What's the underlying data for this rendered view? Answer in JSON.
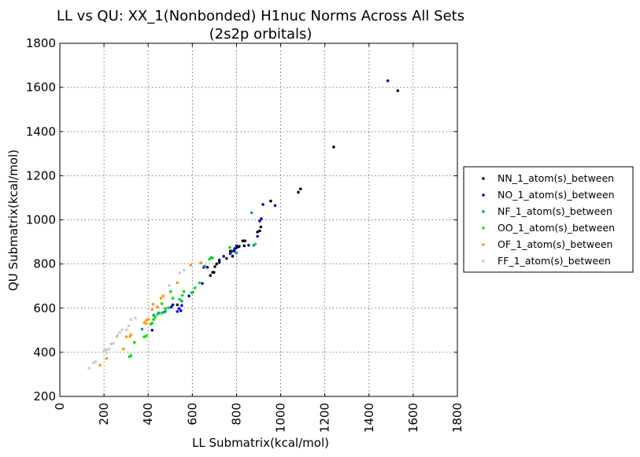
{
  "chart_data": {
    "type": "scatter",
    "title": "LL vs QU: XX_1(Nonbonded) H1nuc Norms Across All Sets",
    "subtitle": "(2s2p orbitals)",
    "xlabel": "LL Submatrix(kcal/mol)",
    "ylabel": "QU Submatrix(kcal/mol)",
    "xlim": [
      0,
      1800
    ],
    "ylim": [
      200,
      1800
    ],
    "xticks": [
      0,
      200,
      400,
      600,
      800,
      1000,
      1200,
      1400,
      1600,
      1800
    ],
    "yticks": [
      200,
      400,
      600,
      800,
      1000,
      1200,
      1400,
      1600,
      1800
    ],
    "xtick_labels": [
      "0",
      "200",
      "400",
      "600",
      "800",
      "1000",
      "1200",
      "1400",
      "1600",
      "1800"
    ],
    "ytick_labels": [
      "200",
      "400",
      "600",
      "800",
      "1000",
      "1200",
      "1400",
      "1600",
      "1800"
    ],
    "grid": true,
    "legend_position": "outside-right",
    "series": [
      {
        "name": "NN_1_atom(s)_between",
        "color": "#000000",
        "points": [
          [
            1530,
            1585
          ],
          [
            1240,
            1330
          ],
          [
            1090,
            1140
          ],
          [
            1080,
            1125
          ],
          [
            955,
            1085
          ],
          [
            910,
            968
          ],
          [
            905,
            950
          ],
          [
            895,
            945
          ],
          [
            838,
            905
          ],
          [
            828,
            905
          ],
          [
            835,
            882
          ],
          [
            812,
            880
          ],
          [
            802,
            875
          ],
          [
            790,
            860
          ],
          [
            772,
            858
          ],
          [
            782,
            835
          ],
          [
            755,
            825
          ],
          [
            722,
            808
          ],
          [
            710,
            800
          ],
          [
            702,
            788
          ],
          [
            692,
            762
          ],
          [
            682,
            748
          ],
          [
            698,
            762
          ],
          [
            668,
            785
          ],
          [
            532,
            615
          ]
        ]
      },
      {
        "name": "NO_1_atom(s)_between",
        "color": "#0000cc",
        "points": [
          [
            1485,
            1630
          ],
          [
            975,
            1065
          ],
          [
            920,
            1070
          ],
          [
            905,
            995
          ],
          [
            912,
            1005
          ],
          [
            895,
            925
          ],
          [
            855,
            885
          ],
          [
            800,
            882
          ],
          [
            792,
            870
          ],
          [
            778,
            858
          ],
          [
            772,
            848
          ],
          [
            742,
            835
          ],
          [
            722,
            818
          ],
          [
            652,
            785
          ],
          [
            645,
            712
          ],
          [
            585,
            655
          ],
          [
            552,
            612
          ],
          [
            540,
            598
          ],
          [
            548,
            588
          ],
          [
            532,
            585
          ],
          [
            512,
            615
          ],
          [
            505,
            605
          ],
          [
            418,
            500
          ]
        ]
      },
      {
        "name": "NF_1_atom(s)_between",
        "color": "#009999",
        "points": [
          [
            868,
            1032
          ],
          [
            878,
            885
          ],
          [
            800,
            850
          ],
          [
            685,
            828
          ],
          [
            655,
            790
          ],
          [
            602,
            672
          ],
          [
            552,
            632
          ],
          [
            478,
            585
          ],
          [
            472,
            582
          ],
          [
            448,
            578
          ],
          [
            425,
            568
          ],
          [
            372,
            505
          ]
        ]
      },
      {
        "name": "OO_1_atom(s)_between",
        "color": "#00e000",
        "points": [
          [
            885,
            890
          ],
          [
            770,
            875
          ],
          [
            692,
            828
          ],
          [
            678,
            822
          ],
          [
            632,
            715
          ],
          [
            612,
            692
          ],
          [
            597,
            670
          ],
          [
            562,
            675
          ],
          [
            555,
            658
          ],
          [
            542,
            640
          ],
          [
            502,
            675
          ],
          [
            512,
            645
          ],
          [
            462,
            620
          ],
          [
            492,
            602
          ],
          [
            478,
            598
          ],
          [
            462,
            578
          ],
          [
            442,
            572
          ],
          [
            432,
            560
          ],
          [
            424,
            548
          ],
          [
            418,
            532
          ],
          [
            412,
            528
          ],
          [
            392,
            475
          ],
          [
            382,
            470
          ],
          [
            338,
            445
          ],
          [
            322,
            385
          ],
          [
            315,
            380
          ]
        ]
      },
      {
        "name": "OF_1_atom(s)_between",
        "color": "#ff9900",
        "points": [
          [
            638,
            805
          ],
          [
            592,
            795
          ],
          [
            532,
            715
          ],
          [
            468,
            655
          ],
          [
            458,
            645
          ],
          [
            442,
            605
          ],
          [
            422,
            618
          ],
          [
            418,
            595
          ],
          [
            402,
            550
          ],
          [
            392,
            545
          ],
          [
            382,
            535
          ],
          [
            390,
            530
          ],
          [
            322,
            480
          ],
          [
            318,
            472
          ],
          [
            302,
            470
          ],
          [
            288,
            415
          ],
          [
            212,
            372
          ],
          [
            182,
            342
          ]
        ]
      },
      {
        "name": "FF_1_atom(s)_between",
        "color": "#cccccc",
        "points": [
          [
            562,
            772
          ],
          [
            542,
            760
          ],
          [
            495,
            702
          ],
          [
            342,
            555
          ],
          [
            322,
            548
          ],
          [
            312,
            520
          ],
          [
            302,
            502
          ],
          [
            282,
            502
          ],
          [
            272,
            490
          ],
          [
            262,
            478
          ],
          [
            258,
            470
          ],
          [
            242,
            440
          ],
          [
            232,
            438
          ],
          [
            222,
            415
          ],
          [
            212,
            412
          ],
          [
            202,
            408
          ],
          [
            212,
            398
          ],
          [
            162,
            358
          ],
          [
            152,
            352
          ],
          [
            132,
            328
          ]
        ]
      }
    ]
  }
}
